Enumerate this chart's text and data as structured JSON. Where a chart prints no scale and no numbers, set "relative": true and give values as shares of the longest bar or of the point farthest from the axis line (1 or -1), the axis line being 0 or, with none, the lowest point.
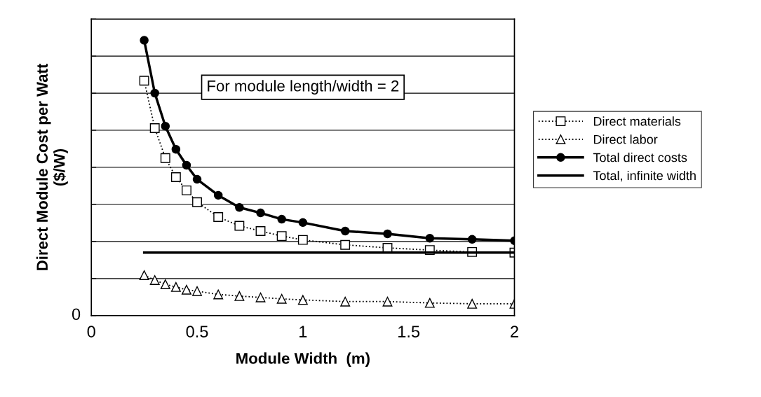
{
  "chart_data": {
    "type": "line",
    "relative": true,
    "xlabel": "Module Width  (m)",
    "ylabel": "Direct Module Cost per Watt\n($/W)",
    "xlim": [
      0,
      2
    ],
    "xticks": [
      0,
      0.5,
      1,
      1.5,
      2
    ],
    "grid": "y",
    "legend": "right",
    "annotations": [
      "For module length/width = 2",
      "0"
    ],
    "x": [
      0.25,
      0.3,
      0.35,
      0.4,
      0.45,
      0.5,
      0.6,
      0.7,
      0.8,
      0.9,
      1.0,
      1.2,
      1.4,
      1.6,
      1.8,
      2.0
    ],
    "series": [
      {
        "name": "Direct materials",
        "color": "#000000",
        "marker": "square",
        "line_style": "dotted",
        "values": [
          0.853,
          0.681,
          0.572,
          0.503,
          0.455,
          0.412,
          0.358,
          0.326,
          0.307,
          0.289,
          0.275,
          0.257,
          0.246,
          0.238,
          0.231,
          0.229
        ]
      },
      {
        "name": "Direct labor",
        "color": "#000000",
        "marker": "triangle",
        "line_style": "dotted",
        "values": [
          0.147,
          0.129,
          0.114,
          0.104,
          0.094,
          0.089,
          0.077,
          0.071,
          0.066,
          0.061,
          0.057,
          0.051,
          0.051,
          0.046,
          0.043,
          0.043
        ]
      },
      {
        "name": "Total direct costs",
        "color": "#000000",
        "marker": "circle",
        "line_style": "solid",
        "values": [
          1,
          0.808,
          0.688,
          0.604,
          0.546,
          0.495,
          0.437,
          0.393,
          0.373,
          0.35,
          0.338,
          0.307,
          0.297,
          0.281,
          0.277,
          0.272
        ]
      },
      {
        "name": "Total, infinite width",
        "color": "#000000",
        "marker": "none",
        "line_style": "solid",
        "x": [
          0.25,
          2.0
        ],
        "values": [
          0.229,
          0.229
        ]
      }
    ]
  }
}
